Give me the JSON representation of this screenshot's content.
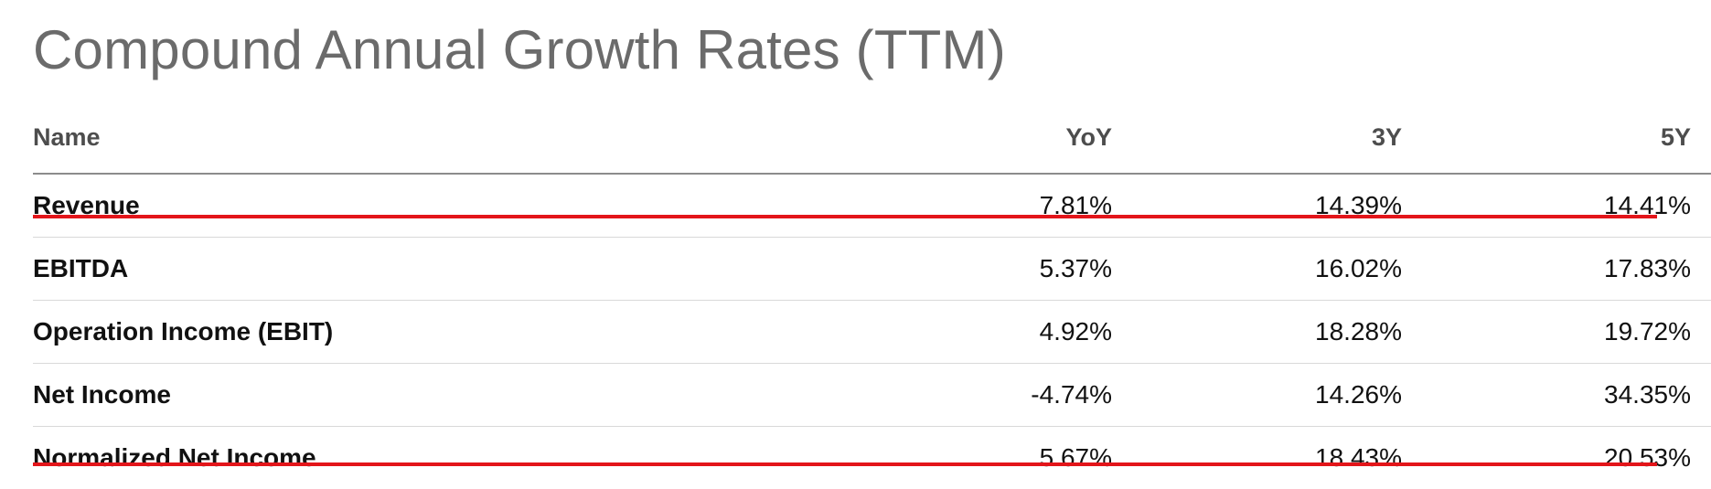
{
  "title": "Compound Annual Growth Rates (TTM)",
  "table": {
    "headers": {
      "name": "Name",
      "yoy": "YoY",
      "y3": "3Y",
      "y5": "5Y"
    },
    "rows": [
      {
        "name": "Revenue",
        "yoy": "7.81%",
        "y3": "14.39%",
        "y5": "14.41%",
        "highlighted": true
      },
      {
        "name": "EBITDA",
        "yoy": "5.37%",
        "y3": "16.02%",
        "y5": "17.83%",
        "highlighted": false
      },
      {
        "name": "Operation Income (EBIT)",
        "yoy": "4.92%",
        "y3": "18.28%",
        "y5": "19.72%",
        "highlighted": false
      },
      {
        "name": "Net Income",
        "yoy": "-4.74%",
        "y3": "14.26%",
        "y5": "34.35%",
        "highlighted": false
      },
      {
        "name": "Normalized Net Income",
        "yoy": "5.67%",
        "y3": "18.43%",
        "y5": "20.53%",
        "highlighted": true
      }
    ]
  },
  "colors": {
    "highlight_underline": "#e3151a",
    "title": "#6b6b6b",
    "header_text": "#4d4d4d"
  }
}
